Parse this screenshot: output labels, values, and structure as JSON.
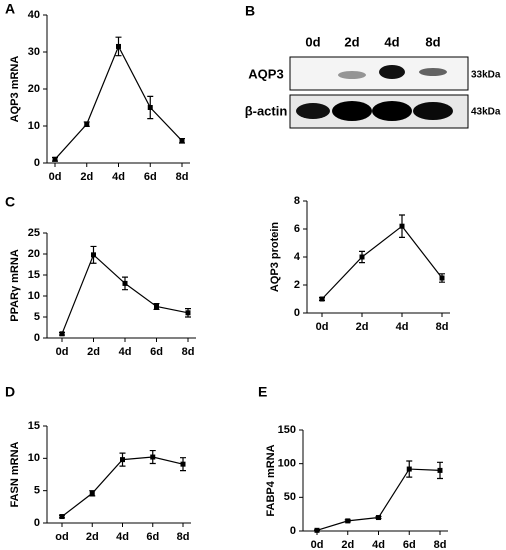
{
  "panels": [
    "A",
    "B",
    "C",
    "D",
    "E"
  ],
  "blot": {
    "lanes": [
      "0d",
      "2d",
      "4d",
      "8d"
    ],
    "rows": [
      {
        "label": "AQP3",
        "size": "33kDa"
      },
      {
        "label": "β-actin",
        "size": "43kDa"
      }
    ]
  },
  "chart_data": [
    {
      "type": "line",
      "ylabel": "AQP3 mRNA",
      "color": "#000000",
      "categories": [
        "0d",
        "2d",
        "4d",
        "6d",
        "8d"
      ],
      "values": [
        1,
        10.5,
        31.5,
        15,
        6
      ],
      "errors": [
        0.5,
        0.6,
        2.5,
        3,
        0.6
      ],
      "ylim": [
        0,
        40
      ],
      "yticks": [
        0,
        10,
        20,
        30,
        40
      ]
    },
    {
      "type": "line",
      "ylabel": "PPARγ mRNA",
      "color": "#000000",
      "categories": [
        "0d",
        "2d",
        "4d",
        "6d",
        "8d"
      ],
      "values": [
        1,
        19.8,
        13,
        7.5,
        6
      ],
      "errors": [
        0.3,
        2,
        1.5,
        0.7,
        1
      ],
      "ylim": [
        0,
        25
      ],
      "yticks": [
        0,
        5,
        10,
        15,
        20,
        25
      ]
    },
    {
      "type": "line",
      "ylabel": "AQP3 protein",
      "color": "#000000",
      "categories": [
        "0d",
        "2d",
        "4d",
        "8d"
      ],
      "values": [
        1,
        4,
        6.2,
        2.5
      ],
      "errors": [
        0.1,
        0.4,
        0.8,
        0.3
      ],
      "ylim": [
        0,
        8
      ],
      "yticks": [
        0,
        2,
        4,
        6,
        8
      ]
    },
    {
      "type": "line",
      "ylabel": "FASN mRNA",
      "color": "#000000",
      "categories": [
        "od",
        "2d",
        "4d",
        "6d",
        "8d"
      ],
      "values": [
        1,
        4.6,
        9.8,
        10.2,
        9.1
      ],
      "errors": [
        0.2,
        0.4,
        1,
        1,
        1
      ],
      "ylim": [
        0,
        15
      ],
      "yticks": [
        0,
        5,
        10,
        15
      ]
    },
    {
      "type": "line",
      "ylabel": "FABP4 mRNA",
      "color": "#000000",
      "categories": [
        "0d",
        "2d",
        "4d",
        "6d",
        "8d"
      ],
      "values": [
        1,
        15,
        20,
        92,
        90
      ],
      "errors": [
        0.5,
        1.5,
        1.5,
        12,
        12
      ],
      "ylim": [
        0,
        150
      ],
      "yticks": [
        0,
        50,
        100,
        150
      ]
    }
  ]
}
